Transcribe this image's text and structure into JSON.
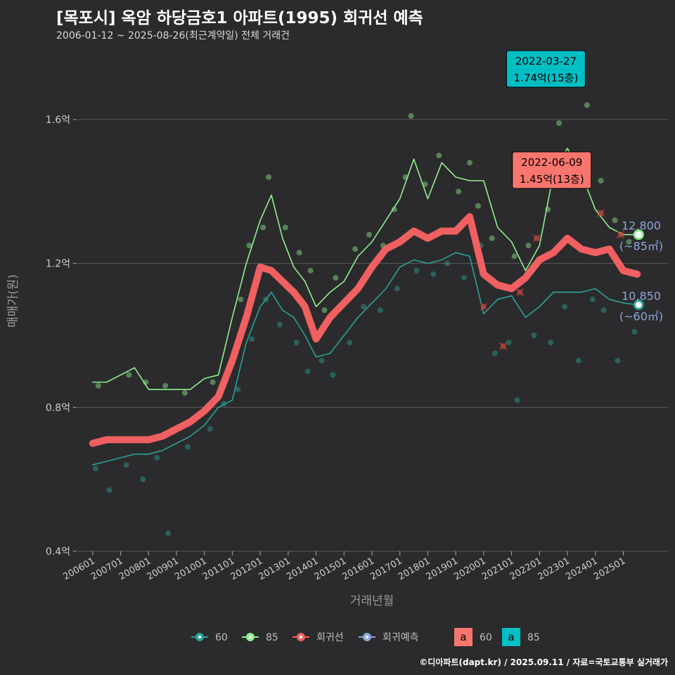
{
  "header": {
    "title": "[목포시] 옥암 하당금호1 아파트(1995) 회귀선 예측",
    "subtitle": "2006-01-12 ~ 2025-08-26(최근계약일) 전체 거래건"
  },
  "footer": {
    "credit": "©디아파트(dapt.kr) / 2025.09.11 / 자료=국토교통부 실거래가"
  },
  "colors": {
    "s60": "#2aa198",
    "s85": "#90ee90",
    "reg": "#f06060",
    "pred": "#8ea6d8",
    "bg": "#2b2b2d",
    "grid": "#5a5a5a",
    "box60": "#f8766d",
    "box85": "#00bfc4"
  },
  "legend": {
    "items": [
      "60",
      "85",
      "회귀선",
      "회귀예측"
    ],
    "box_glyph": "a",
    "boxes": [
      "60",
      "85"
    ]
  },
  "end_labels": {
    "s85": {
      "value": "12,800",
      "area": "(~85㎡)"
    },
    "s60": {
      "value": "10,850",
      "area": "(~60㎡)"
    }
  },
  "chart_data": {
    "type": "line",
    "title": "[목포시] 옥암 하당금호1 아파트(1995) 회귀선 예측",
    "xlabel": "거래년월",
    "ylabel": "매매가(원)",
    "x_ticks": [
      "200601",
      "200701",
      "200801",
      "200901",
      "201001",
      "201101",
      "201201",
      "201301",
      "201401",
      "201501",
      "201601",
      "201701",
      "201801",
      "201901",
      "202001",
      "202101",
      "202201",
      "202301",
      "202401",
      "202501"
    ],
    "y_ticks": [
      "0.4억",
      "0.8억",
      "1.2억",
      "1.6억"
    ],
    "ylim": [
      0.4,
      1.6
    ],
    "y_tick_values": [
      0.4,
      0.8,
      1.2,
      1.6
    ],
    "grid": true,
    "legend_position": "bottom",
    "series": [
      {
        "name": "85",
        "points": [
          [
            2006.0,
            0.87
          ],
          [
            2006.5,
            0.87
          ],
          [
            2007.0,
            0.89
          ],
          [
            2007.5,
            0.91
          ],
          [
            2008.0,
            0.85
          ],
          [
            2008.5,
            0.85
          ],
          [
            2009.0,
            0.85
          ],
          [
            2009.5,
            0.85
          ],
          [
            2010.0,
            0.88
          ],
          [
            2010.5,
            0.89
          ],
          [
            2011.0,
            1.05
          ],
          [
            2011.5,
            1.2
          ],
          [
            2012.0,
            1.32
          ],
          [
            2012.4,
            1.39
          ],
          [
            2012.8,
            1.27
          ],
          [
            2013.2,
            1.19
          ],
          [
            2013.6,
            1.15
          ],
          [
            2014.0,
            1.08
          ],
          [
            2014.5,
            1.12
          ],
          [
            2015.0,
            1.15
          ],
          [
            2015.5,
            1.22
          ],
          [
            2016.0,
            1.26
          ],
          [
            2016.5,
            1.32
          ],
          [
            2017.0,
            1.38
          ],
          [
            2017.5,
            1.49
          ],
          [
            2018.0,
            1.38
          ],
          [
            2018.5,
            1.48
          ],
          [
            2019.0,
            1.44
          ],
          [
            2019.5,
            1.43
          ],
          [
            2020.0,
            1.43
          ],
          [
            2020.5,
            1.3
          ],
          [
            2021.0,
            1.26
          ],
          [
            2021.5,
            1.18
          ],
          [
            2022.0,
            1.25
          ],
          [
            2022.5,
            1.45
          ],
          [
            2023.0,
            1.52
          ],
          [
            2023.5,
            1.45
          ],
          [
            2024.0,
            1.35
          ],
          [
            2024.5,
            1.3
          ],
          [
            2025.0,
            1.28
          ],
          [
            2025.5,
            1.28
          ]
        ]
      },
      {
        "name": "60",
        "points": [
          [
            2006.0,
            0.64
          ],
          [
            2006.5,
            0.65
          ],
          [
            2007.0,
            0.66
          ],
          [
            2007.5,
            0.67
          ],
          [
            2008.0,
            0.67
          ],
          [
            2008.5,
            0.68
          ],
          [
            2009.0,
            0.7
          ],
          [
            2009.5,
            0.72
          ],
          [
            2010.0,
            0.75
          ],
          [
            2010.5,
            0.8
          ],
          [
            2011.0,
            0.82
          ],
          [
            2011.5,
            0.98
          ],
          [
            2012.0,
            1.08
          ],
          [
            2012.4,
            1.12
          ],
          [
            2012.8,
            1.07
          ],
          [
            2013.2,
            1.05
          ],
          [
            2013.6,
            1.0
          ],
          [
            2014.0,
            0.94
          ],
          [
            2014.5,
            0.95
          ],
          [
            2015.0,
            1.0
          ],
          [
            2015.5,
            1.05
          ],
          [
            2016.0,
            1.09
          ],
          [
            2016.5,
            1.13
          ],
          [
            2017.0,
            1.19
          ],
          [
            2017.5,
            1.21
          ],
          [
            2018.0,
            1.2
          ],
          [
            2018.5,
            1.21
          ],
          [
            2019.0,
            1.23
          ],
          [
            2019.5,
            1.22
          ],
          [
            2020.0,
            1.06
          ],
          [
            2020.5,
            1.1
          ],
          [
            2021.0,
            1.11
          ],
          [
            2021.5,
            1.05
          ],
          [
            2022.0,
            1.08
          ],
          [
            2022.5,
            1.12
          ],
          [
            2023.0,
            1.12
          ],
          [
            2023.5,
            1.12
          ],
          [
            2024.0,
            1.13
          ],
          [
            2024.5,
            1.1
          ],
          [
            2025.0,
            1.09
          ],
          [
            2025.5,
            1.085
          ]
        ]
      },
      {
        "name": "회귀선",
        "points": [
          [
            2006.0,
            0.7
          ],
          [
            2006.5,
            0.71
          ],
          [
            2007.0,
            0.71
          ],
          [
            2007.5,
            0.71
          ],
          [
            2008.0,
            0.71
          ],
          [
            2008.5,
            0.72
          ],
          [
            2009.0,
            0.74
          ],
          [
            2009.5,
            0.76
          ],
          [
            2010.0,
            0.79
          ],
          [
            2010.5,
            0.83
          ],
          [
            2011.0,
            0.93
          ],
          [
            2011.5,
            1.05
          ],
          [
            2012.0,
            1.19
          ],
          [
            2012.4,
            1.18
          ],
          [
            2012.8,
            1.15
          ],
          [
            2013.2,
            1.12
          ],
          [
            2013.6,
            1.08
          ],
          [
            2014.0,
            0.99
          ],
          [
            2014.5,
            1.05
          ],
          [
            2015.0,
            1.09
          ],
          [
            2015.5,
            1.13
          ],
          [
            2016.0,
            1.19
          ],
          [
            2016.5,
            1.24
          ],
          [
            2017.0,
            1.26
          ],
          [
            2017.5,
            1.29
          ],
          [
            2018.0,
            1.27
          ],
          [
            2018.5,
            1.29
          ],
          [
            2019.0,
            1.29
          ],
          [
            2019.5,
            1.33
          ],
          [
            2020.0,
            1.17
          ],
          [
            2020.5,
            1.14
          ],
          [
            2021.0,
            1.13
          ],
          [
            2021.5,
            1.16
          ],
          [
            2022.0,
            1.21
          ],
          [
            2022.5,
            1.23
          ],
          [
            2023.0,
            1.27
          ],
          [
            2023.5,
            1.24
          ],
          [
            2024.0,
            1.23
          ],
          [
            2024.5,
            1.24
          ],
          [
            2025.0,
            1.18
          ],
          [
            2025.5,
            1.17
          ]
        ]
      }
    ],
    "points": {
      "85": [
        [
          2006.2,
          0.86
        ],
        [
          2007.3,
          0.89
        ],
        [
          2007.9,
          0.87
        ],
        [
          2008.6,
          0.86
        ],
        [
          2009.3,
          0.84
        ],
        [
          2010.3,
          0.87
        ],
        [
          2010.9,
          0.91
        ],
        [
          2011.3,
          1.1
        ],
        [
          2011.6,
          1.25
        ],
        [
          2012.1,
          1.3
        ],
        [
          2012.3,
          1.44
        ],
        [
          2012.9,
          1.3
        ],
        [
          2013.4,
          1.23
        ],
        [
          2013.8,
          1.18
        ],
        [
          2014.3,
          1.07
        ],
        [
          2014.7,
          1.16
        ],
        [
          2015.4,
          1.24
        ],
        [
          2015.9,
          1.28
        ],
        [
          2016.4,
          1.25
        ],
        [
          2016.8,
          1.35
        ],
        [
          2017.2,
          1.44
        ],
        [
          2017.4,
          1.61
        ],
        [
          2017.9,
          1.42
        ],
        [
          2018.4,
          1.5
        ],
        [
          2019.1,
          1.4
        ],
        [
          2019.5,
          1.48
        ],
        [
          2019.8,
          1.36
        ],
        [
          2020.3,
          1.27
        ],
        [
          2021.1,
          1.22
        ],
        [
          2021.6,
          1.25
        ],
        [
          2022.3,
          1.35
        ],
        [
          2022.7,
          1.59
        ],
        [
          2023.2,
          1.44
        ],
        [
          2023.7,
          1.64
        ],
        [
          2024.2,
          1.43
        ],
        [
          2024.7,
          1.32
        ],
        [
          2025.2,
          1.26
        ]
      ],
      "60": [
        [
          2006.1,
          0.63
        ],
        [
          2006.6,
          0.57
        ],
        [
          2007.2,
          0.64
        ],
        [
          2007.8,
          0.6
        ],
        [
          2008.3,
          0.66
        ],
        [
          2008.7,
          0.45
        ],
        [
          2009.4,
          0.69
        ],
        [
          2010.2,
          0.74
        ],
        [
          2010.7,
          0.81
        ],
        [
          2011.2,
          0.85
        ],
        [
          2011.7,
          0.99
        ],
        [
          2012.2,
          1.1
        ],
        [
          2012.7,
          1.03
        ],
        [
          2013.3,
          0.98
        ],
        [
          2013.7,
          0.9
        ],
        [
          2014.2,
          0.93
        ],
        [
          2014.6,
          0.89
        ],
        [
          2015.2,
          0.98
        ],
        [
          2015.7,
          1.08
        ],
        [
          2016.3,
          1.07
        ],
        [
          2016.9,
          1.13
        ],
        [
          2017.6,
          1.18
        ],
        [
          2018.2,
          1.17
        ],
        [
          2018.7,
          1.2
        ],
        [
          2019.3,
          1.16
        ],
        [
          2019.9,
          1.25
        ],
        [
          2020.4,
          0.95
        ],
        [
          2020.9,
          0.98
        ],
        [
          2021.2,
          0.82
        ],
        [
          2021.8,
          1.0
        ],
        [
          2022.4,
          0.98
        ],
        [
          2022.9,
          1.08
        ],
        [
          2023.4,
          0.93
        ],
        [
          2023.9,
          1.1
        ],
        [
          2024.3,
          1.07
        ],
        [
          2024.8,
          0.93
        ],
        [
          2025.4,
          1.01
        ]
      ]
    },
    "regression_marks": [
      [
        2020.0,
        1.08
      ],
      [
        2020.7,
        0.97
      ],
      [
        2021.3,
        1.12
      ],
      [
        2021.9,
        1.27
      ],
      [
        2023.6,
        1.45
      ],
      [
        2024.2,
        1.34
      ],
      [
        2024.9,
        1.28
      ]
    ],
    "annotations": [
      {
        "date": "2022-03-27",
        "price": "1.74억(15층)",
        "series": "85",
        "x": 2022.23,
        "y": 1.74
      },
      {
        "date": "2022-06-09",
        "price": "1.45억(13층)",
        "series": "60",
        "x": 2022.44,
        "y": 1.45
      }
    ],
    "end_points": [
      {
        "series": "85",
        "x": 2025.55,
        "y": 1.28
      },
      {
        "series": "60",
        "x": 2025.55,
        "y": 1.085
      }
    ]
  }
}
